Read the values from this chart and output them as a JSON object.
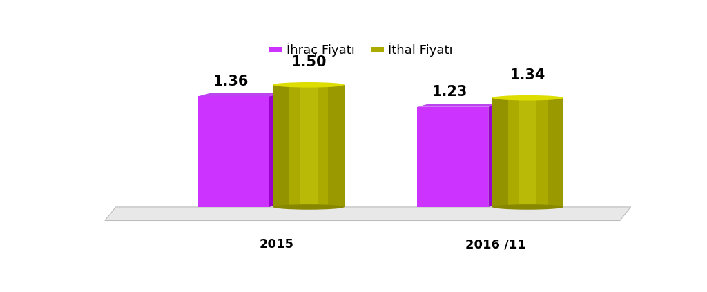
{
  "groups": [
    "2015",
    "2016 /11"
  ],
  "ihrac_values": [
    1.36,
    1.23
  ],
  "ithal_values": [
    1.5,
    1.34
  ],
  "ihrac_color": "#CC33FF",
  "ihrac_color_dark": "#9900CC",
  "ihrac_color_top": "#BB44EE",
  "ithal_color_main": "#AAAA00",
  "ithal_color_light": "#CCCC11",
  "ithal_color_dark": "#888800",
  "ithal_color_top": "#DDDD00",
  "legend_ihrac": "İhraç Fiyatı",
  "legend_ithal": "İthal Fiyatı",
  "background_color": "#ffffff",
  "label_fontsize": 15,
  "legend_fontsize": 13,
  "tick_fontsize": 13
}
